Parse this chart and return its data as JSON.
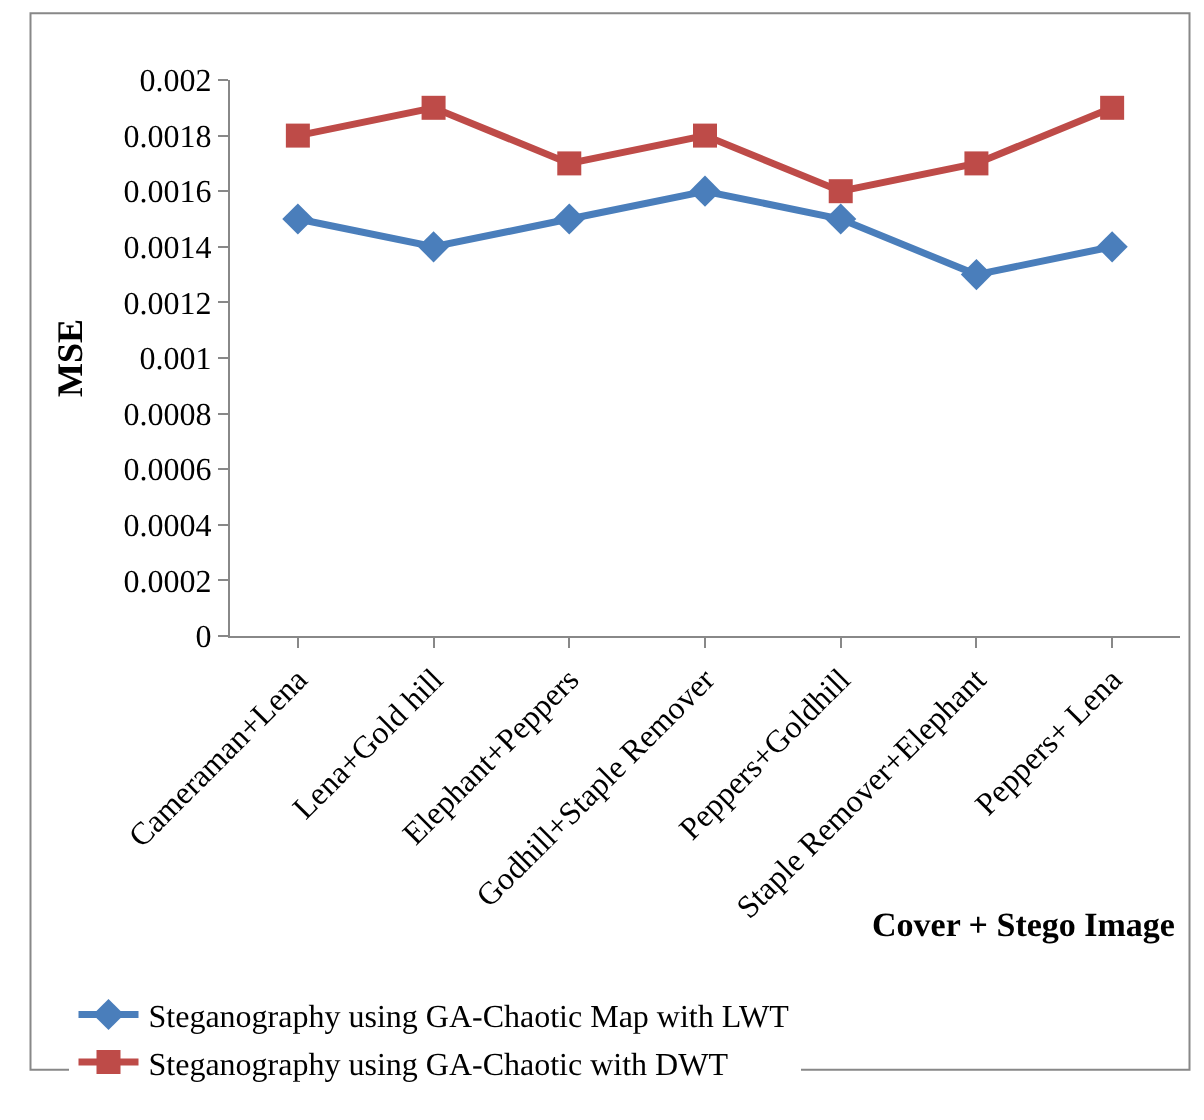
{
  "chart_data": {
    "type": "line",
    "xlabel": "Cover + Stego Image",
    "ylabel": "MSE",
    "categories": [
      "Cameraman+Lena",
      "Lena+Gold hill",
      "Elephant+Peppers",
      "Godhill+Staple Remover",
      "Peppers+Goldhill",
      "Staple Remover+Elephant",
      "Peppers+ Lena"
    ],
    "series": [
      {
        "name": "Steganography using GA-Chaotic Map with LWT",
        "color": "#4a7ebb",
        "marker": "diamond",
        "values": [
          0.0015,
          0.0014,
          0.0015,
          0.0016,
          0.0015,
          0.0013,
          0.0014
        ]
      },
      {
        "name": "Steganography using GA-Chaotic with DWT",
        "color": "#be4b48",
        "marker": "square",
        "values": [
          0.0018,
          0.0019,
          0.0017,
          0.0018,
          0.0016,
          0.0017,
          0.0019
        ]
      }
    ],
    "ylim": [
      0,
      0.002
    ],
    "yticks": [
      0,
      0.0002,
      0.0004,
      0.0006,
      0.0008,
      0.001,
      0.0012,
      0.0014,
      0.0016,
      0.0018,
      0.002
    ],
    "grid": false,
    "legend": "bottom",
    "line_style": "solid"
  }
}
